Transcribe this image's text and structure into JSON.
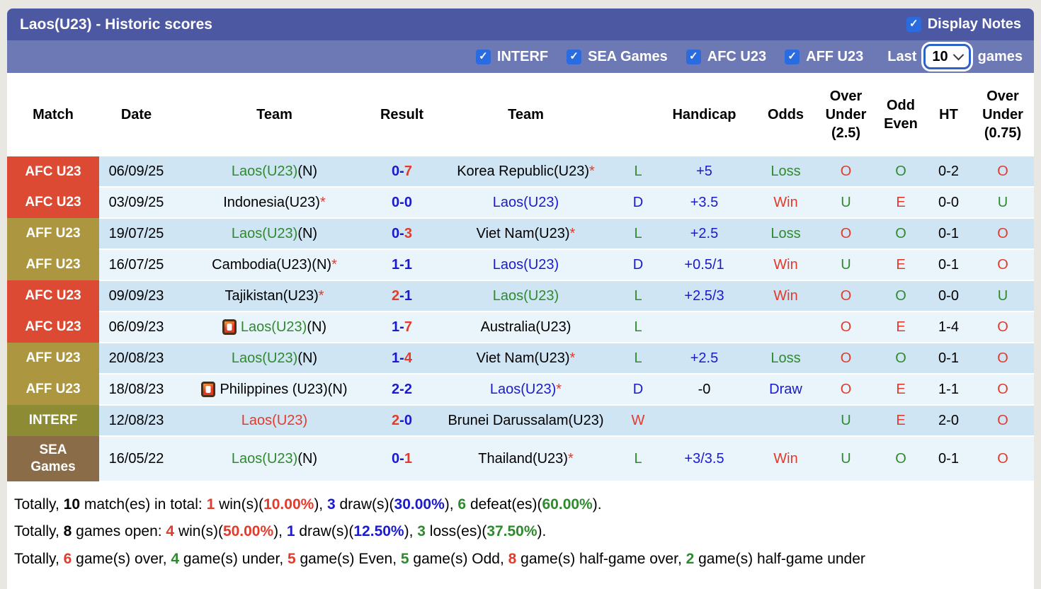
{
  "header": {
    "title": "Laos(U23) - Historic scores",
    "display_notes_label": "Display Notes"
  },
  "filters": {
    "checkboxes": [
      "INTERF",
      "SEA Games",
      "AFC U23",
      "AFF U23"
    ],
    "last_label": "Last",
    "last_value": "10",
    "games_label": "games"
  },
  "table": {
    "columns": [
      "Match",
      "Date",
      "Team",
      "Result",
      "Team",
      "",
      "Handicap",
      "Odds",
      "Over\nUnder\n(2.5)",
      "Odd\nEven",
      "HT",
      "Over\nUnder\n(0.75)"
    ],
    "rows": [
      {
        "badge": {
          "label": "AFC U23",
          "type": "afc"
        },
        "date": "06/09/25",
        "home": {
          "name": "Laos(U23)",
          "c": "g",
          "suffix": "(N)"
        },
        "score": {
          "h": "0",
          "hc": "b",
          "a": "7",
          "ac": "r"
        },
        "away": {
          "name": "Korea Republic(U23)",
          "c": "k",
          "star": true
        },
        "wld": {
          "t": "L",
          "c": "g"
        },
        "handicap": {
          "t": "+5",
          "c": "b"
        },
        "odds": {
          "t": "Loss",
          "c": "g"
        },
        "ou25": {
          "t": "O",
          "c": "r"
        },
        "oddEven": {
          "t": "O",
          "c": "g"
        },
        "ht": "0-2",
        "ou075": {
          "t": "O",
          "c": "r"
        }
      },
      {
        "badge": {
          "label": "AFC U23",
          "type": "afc"
        },
        "date": "03/09/25",
        "home": {
          "name": "Indonesia(U23)",
          "c": "k",
          "star": true
        },
        "score": {
          "h": "0",
          "hc": "b",
          "a": "0",
          "ac": "b"
        },
        "away": {
          "name": "Laos(U23)",
          "c": "b"
        },
        "wld": {
          "t": "D",
          "c": "b"
        },
        "handicap": {
          "t": "+3.5",
          "c": "b"
        },
        "odds": {
          "t": "Win",
          "c": "r"
        },
        "ou25": {
          "t": "U",
          "c": "g"
        },
        "oddEven": {
          "t": "E",
          "c": "r"
        },
        "ht": "0-0",
        "ou075": {
          "t": "U",
          "c": "g"
        }
      },
      {
        "badge": {
          "label": "AFF U23",
          "type": "aff"
        },
        "date": "19/07/25",
        "home": {
          "name": "Laos(U23)",
          "c": "g",
          "suffix": "(N)"
        },
        "score": {
          "h": "0",
          "hc": "b",
          "a": "3",
          "ac": "r"
        },
        "away": {
          "name": "Viet Nam(U23)",
          "c": "k",
          "star": true
        },
        "wld": {
          "t": "L",
          "c": "g"
        },
        "handicap": {
          "t": "+2.5",
          "c": "b"
        },
        "odds": {
          "t": "Loss",
          "c": "g"
        },
        "ou25": {
          "t": "O",
          "c": "r"
        },
        "oddEven": {
          "t": "O",
          "c": "g"
        },
        "ht": "0-1",
        "ou075": {
          "t": "O",
          "c": "r"
        }
      },
      {
        "badge": {
          "label": "AFF U23",
          "type": "aff"
        },
        "date": "16/07/25",
        "home": {
          "name": "Cambodia(U23)(N)",
          "c": "k",
          "star": true
        },
        "score": {
          "h": "1",
          "hc": "b",
          "a": "1",
          "ac": "b"
        },
        "away": {
          "name": "Laos(U23)",
          "c": "b"
        },
        "wld": {
          "t": "D",
          "c": "b"
        },
        "handicap": {
          "t": "+0.5/1",
          "c": "b"
        },
        "odds": {
          "t": "Win",
          "c": "r"
        },
        "ou25": {
          "t": "U",
          "c": "g"
        },
        "oddEven": {
          "t": "E",
          "c": "r"
        },
        "ht": "0-1",
        "ou075": {
          "t": "O",
          "c": "r"
        }
      },
      {
        "badge": {
          "label": "AFC U23",
          "type": "afc"
        },
        "date": "09/09/23",
        "home": {
          "name": "Tajikistan(U23)",
          "c": "k",
          "star": true
        },
        "score": {
          "h": "2",
          "hc": "r",
          "a": "1",
          "ac": "b"
        },
        "away": {
          "name": "Laos(U23)",
          "c": "g"
        },
        "wld": {
          "t": "L",
          "c": "g"
        },
        "handicap": {
          "t": "+2.5/3",
          "c": "b"
        },
        "odds": {
          "t": "Win",
          "c": "r"
        },
        "ou25": {
          "t": "O",
          "c": "r"
        },
        "oddEven": {
          "t": "O",
          "c": "g"
        },
        "ht": "0-0",
        "ou075": {
          "t": "U",
          "c": "g"
        }
      },
      {
        "badge": {
          "label": "AFC U23",
          "type": "afc"
        },
        "date": "06/09/23",
        "home": {
          "name": "Laos(U23)",
          "c": "g",
          "suffix": "(N)",
          "icon": true
        },
        "score": {
          "h": "1",
          "hc": "b",
          "a": "7",
          "ac": "r"
        },
        "away": {
          "name": "Australia(U23)",
          "c": "k"
        },
        "wld": {
          "t": "L",
          "c": "g"
        },
        "handicap": null,
        "odds": null,
        "ou25": {
          "t": "O",
          "c": "r"
        },
        "oddEven": {
          "t": "E",
          "c": "r"
        },
        "ht": "1-4",
        "ou075": {
          "t": "O",
          "c": "r"
        }
      },
      {
        "badge": {
          "label": "AFF U23",
          "type": "aff"
        },
        "date": "20/08/23",
        "home": {
          "name": "Laos(U23)",
          "c": "g",
          "suffix": "(N)"
        },
        "score": {
          "h": "1",
          "hc": "b",
          "a": "4",
          "ac": "r"
        },
        "away": {
          "name": "Viet Nam(U23)",
          "c": "k",
          "star": true
        },
        "wld": {
          "t": "L",
          "c": "g"
        },
        "handicap": {
          "t": "+2.5",
          "c": "b"
        },
        "odds": {
          "t": "Loss",
          "c": "g"
        },
        "ou25": {
          "t": "O",
          "c": "r"
        },
        "oddEven": {
          "t": "O",
          "c": "g"
        },
        "ht": "0-1",
        "ou075": {
          "t": "O",
          "c": "r"
        }
      },
      {
        "badge": {
          "label": "AFF U23",
          "type": "aff"
        },
        "date": "18/08/23",
        "home": {
          "name": "Philippines (U23)(N)",
          "c": "k",
          "icon": true
        },
        "score": {
          "h": "2",
          "hc": "b",
          "a": "2",
          "ac": "b"
        },
        "away": {
          "name": "Laos(U23)",
          "c": "b",
          "star": true
        },
        "wld": {
          "t": "D",
          "c": "b"
        },
        "handicap": {
          "t": "-0",
          "c": "k"
        },
        "odds": {
          "t": "Draw",
          "c": "b"
        },
        "ou25": {
          "t": "O",
          "c": "r"
        },
        "oddEven": {
          "t": "E",
          "c": "r"
        },
        "ht": "1-1",
        "ou075": {
          "t": "O",
          "c": "r"
        }
      },
      {
        "badge": {
          "label": "INTERF",
          "type": "interf"
        },
        "date": "12/08/23",
        "home": {
          "name": "Laos(U23)",
          "c": "r"
        },
        "score": {
          "h": "2",
          "hc": "r",
          "a": "0",
          "ac": "b"
        },
        "away": {
          "name": "Brunei Darussalam(U23)",
          "c": "k"
        },
        "wld": {
          "t": "W",
          "c": "r"
        },
        "handicap": null,
        "odds": null,
        "ou25": {
          "t": "U",
          "c": "g"
        },
        "oddEven": {
          "t": "E",
          "c": "r"
        },
        "ht": "2-0",
        "ou075": {
          "t": "O",
          "c": "r"
        }
      },
      {
        "badge": {
          "label": "SEA Games",
          "type": "sea"
        },
        "date": "16/05/22",
        "tall": true,
        "home": {
          "name": "Laos(U23)",
          "c": "g",
          "suffix": "(N)"
        },
        "score": {
          "h": "0",
          "hc": "b",
          "a": "1",
          "ac": "r"
        },
        "away": {
          "name": "Thailand(U23)",
          "c": "k",
          "star": true
        },
        "wld": {
          "t": "L",
          "c": "g"
        },
        "handicap": {
          "t": "+3/3.5",
          "c": "b"
        },
        "odds": {
          "t": "Win",
          "c": "r"
        },
        "ou25": {
          "t": "U",
          "c": "g"
        },
        "oddEven": {
          "t": "O",
          "c": "g"
        },
        "ht": "0-1",
        "ou075": {
          "t": "O",
          "c": "r"
        }
      }
    ]
  },
  "summary": {
    "lines": [
      [
        {
          "t": "Totally, "
        },
        {
          "t": "10",
          "b": true
        },
        {
          "t": " match(es) in total: "
        },
        {
          "t": "1",
          "c": "r",
          "b": true
        },
        {
          "t": " win(s)("
        },
        {
          "t": "10.00%",
          "c": "r",
          "b": true
        },
        {
          "t": "), "
        },
        {
          "t": "3",
          "c": "b",
          "b": true
        },
        {
          "t": " draw(s)("
        },
        {
          "t": "30.00%",
          "c": "b",
          "b": true
        },
        {
          "t": "), "
        },
        {
          "t": "6",
          "c": "g",
          "b": true
        },
        {
          "t": " defeat(es)("
        },
        {
          "t": "60.00%",
          "c": "g",
          "b": true
        },
        {
          "t": ")."
        }
      ],
      [
        {
          "t": "Totally, "
        },
        {
          "t": "8",
          "b": true
        },
        {
          "t": " games open: "
        },
        {
          "t": "4",
          "c": "r",
          "b": true
        },
        {
          "t": " win(s)("
        },
        {
          "t": "50.00%",
          "c": "r",
          "b": true
        },
        {
          "t": "), "
        },
        {
          "t": "1",
          "c": "b",
          "b": true
        },
        {
          "t": " draw(s)("
        },
        {
          "t": "12.50%",
          "c": "b",
          "b": true
        },
        {
          "t": "), "
        },
        {
          "t": "3",
          "c": "g",
          "b": true
        },
        {
          "t": " loss(es)("
        },
        {
          "t": "37.50%",
          "c": "g",
          "b": true
        },
        {
          "t": ")."
        }
      ],
      [
        {
          "t": "Totally, "
        },
        {
          "t": "6",
          "c": "r",
          "b": true
        },
        {
          "t": " game(s) over, "
        },
        {
          "t": "4",
          "c": "g",
          "b": true
        },
        {
          "t": " game(s) under, "
        },
        {
          "t": "5",
          "c": "r",
          "b": true
        },
        {
          "t": " game(s) Even, "
        },
        {
          "t": "5",
          "c": "g",
          "b": true
        },
        {
          "t": " game(s) Odd, "
        },
        {
          "t": "8",
          "c": "r",
          "b": true
        },
        {
          "t": " game(s) half-game over, "
        },
        {
          "t": "2",
          "c": "g",
          "b": true
        },
        {
          "t": " game(s) half-game under"
        }
      ]
    ]
  },
  "colors": {
    "text": {
      "k": "#000000",
      "r": "#e23b2c",
      "g": "#2f8a2f",
      "b": "#1b1bcd"
    },
    "badges": {
      "afc": "#dc4a33",
      "aff": "#ac9740",
      "interf": "#8d8b33",
      "sea": "#8a6c49"
    },
    "row_dark": "#cfe5f3",
    "row_light": "#e9f4fb",
    "topbar": "#4c58a2",
    "filterbar": "#6d79b4",
    "checkbox": "#2b6be0"
  }
}
